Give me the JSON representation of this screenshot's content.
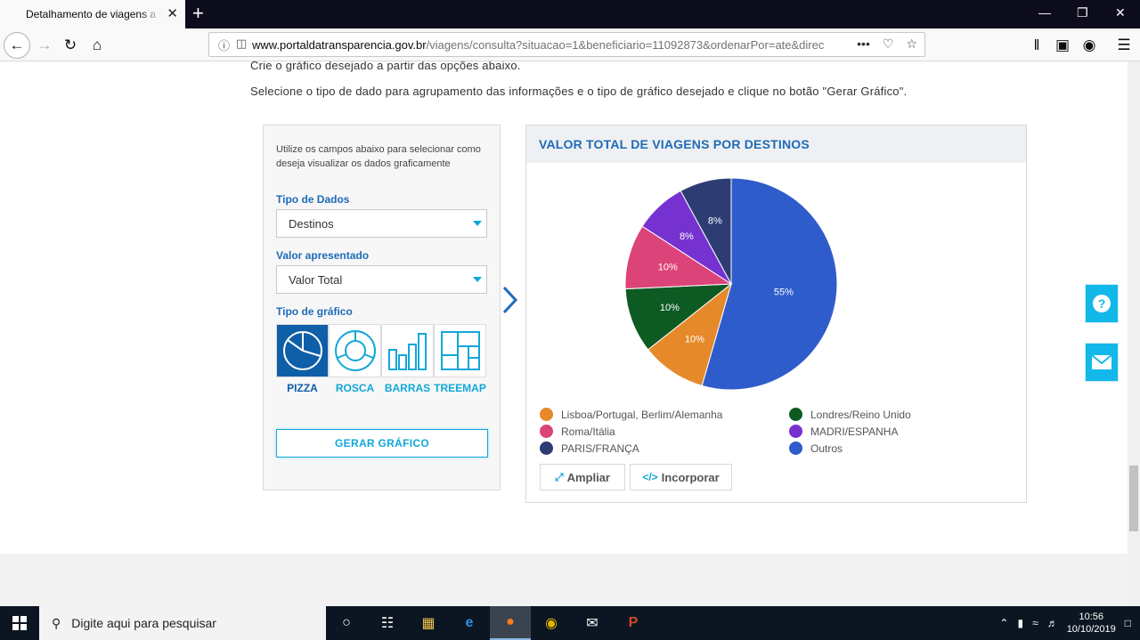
{
  "browser": {
    "tab_title": "Detalhamento de viagens a ser",
    "tab_close": "✕",
    "new_tab": "+",
    "url_domain": "www.portaldatransparencia.gov.br",
    "url_path": "/viagens/consulta?situacao=1&beneficiario=11092873&ordenarPor=ate&direc",
    "url_more": "•••"
  },
  "page": {
    "intro_line1": "Crie o gráfico desejado a partir das opções abaixo.",
    "intro_line2": "Selecione o tipo de dado para agrupamento das informações e o tipo de gráfico desejado e clique no botão \"Gerar Gráfico\"."
  },
  "panel": {
    "hint": "Utilize os campos abaixo para selecionar como deseja visualizar os dados graficamente",
    "tipo_dados_label": "Tipo de Dados",
    "tipo_dados_value": "Destinos",
    "valor_label": "Valor apresentado",
    "valor_value": "Valor Total",
    "tipo_grafico_label": "Tipo de gráfico",
    "chart_types": [
      "PIZZA",
      "ROSCA",
      "BARRAS",
      "TREEMAP"
    ],
    "selected_chart_type": "PIZZA",
    "gerar_label": "GERAR GRÁFICO"
  },
  "chart_panel": {
    "title": "VALOR TOTAL DE VIAGENS POR DESTINOS",
    "ampliar": "Ampliar",
    "incorporar": "Incorporar"
  },
  "chart_data": {
    "type": "pie",
    "title": "VALOR TOTAL DE VIAGENS POR DESTINOS",
    "slices": [
      {
        "label": "Outros",
        "value": 55,
        "display": "55%",
        "color": "#2f5ccb"
      },
      {
        "label": "Lisboa/Portugal, Berlim/Alemanha",
        "value": 10,
        "display": "10%",
        "color": "#e6892a"
      },
      {
        "label": "Londres/Reino Unido",
        "value": 10,
        "display": "10%",
        "color": "#0d5a23"
      },
      {
        "label": "Roma/Itália",
        "value": 10,
        "display": "10%",
        "color": "#dc4379"
      },
      {
        "label": "MADRI/ESPANHA",
        "value": 8,
        "display": "8%",
        "color": "#7532d1"
      },
      {
        "label": "PARIS/FRANÇA",
        "value": 8,
        "display": "8%",
        "color": "#2d3d73"
      }
    ],
    "legend_order": [
      "Lisboa/Portugal, Berlim/Alemanha",
      "Londres/Reino Unido",
      "Roma/Itália",
      "MADRI/ESPANHA",
      "PARIS/FRANÇA",
      "Outros"
    ]
  },
  "taskbar": {
    "search_placeholder": "Digite aqui para pesquisar",
    "time": "10:56",
    "date": "10/10/2019"
  }
}
